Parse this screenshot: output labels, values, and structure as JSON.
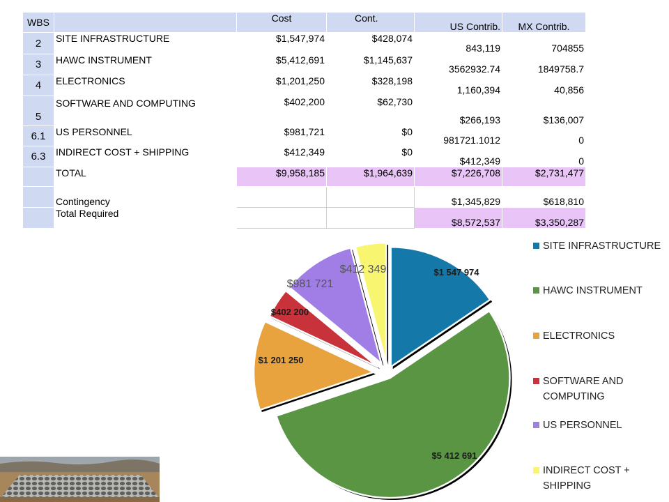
{
  "table": {
    "headers": {
      "wbs": "WBS",
      "desc": "",
      "cost": "Cost",
      "cont": "Cont.",
      "us": "US Contrib.",
      "mx": "MX Contrib."
    },
    "rows": [
      {
        "wbs": "2",
        "desc": "SITE INFRASTRUCTURE",
        "cost": "$1,547,974",
        "cont": "$428,074",
        "us": "843,119",
        "mx": "704855"
      },
      {
        "wbs": "3",
        "desc": "HAWC INSTRUMENT",
        "cost": "$5,412,691",
        "cont": "$1,145,637",
        "us": "3562932.74",
        "mx": "1849758.7"
      },
      {
        "wbs": "4",
        "desc": "ELECTRONICS",
        "cost": "$1,201,250",
        "cont": "$328,198",
        "us": "1,160,394",
        "mx": "40,856"
      },
      {
        "wbs": "5",
        "desc": "SOFTWARE AND COMPUTING",
        "cost": "$402,200",
        "cont": "$62,730",
        "us": "$266,193",
        "mx": "$136,007"
      },
      {
        "wbs": "6.1",
        "desc": "US PERSONNEL",
        "cost": "$981,721",
        "cont": "$0",
        "us": "981721.1012",
        "mx": "0"
      },
      {
        "wbs": "6.3",
        "desc": "INDIRECT COST + SHIPPING",
        "cost": "$412,349",
        "cont": "$0",
        "us": "$412,349",
        "mx": "0"
      }
    ],
    "total": {
      "desc": "TOTAL",
      "cost": "$9,958,185",
      "cont": "$1,964,639",
      "us": "$7,226,708",
      "mx": "$2,731,477"
    },
    "contingency": {
      "desc": "Contingency",
      "us": "$1,345,829",
      "mx": "$618,810"
    },
    "required": {
      "desc": "Total Required",
      "us": "$8,572,537",
      "mx": "$3,350,287"
    }
  },
  "chart_data": {
    "type": "pie",
    "exploded": true,
    "start": "12 o'clock, clockwise",
    "slices": [
      {
        "name": "SITE INFRASTRUCTURE",
        "value": 1547974,
        "label": "$1 547 974",
        "color": "#1478a8"
      },
      {
        "name": "HAWC INSTRUMENT",
        "value": 5412691,
        "label": "$5 412 691",
        "color": "#5a9544"
      },
      {
        "name": "ELECTRONICS",
        "value": 1201250,
        "label": "$1 201 250",
        "color": "#e8a23e"
      },
      {
        "name": "SOFTWARE AND COMPUTING",
        "value": 402200,
        "label": "$402 200",
        "color": "#c8323a"
      },
      {
        "name": "US PERSONNEL",
        "value": 981721,
        "label": "$981 721",
        "color": "#a07ee6"
      },
      {
        "name": "INDIRECT COST + SHIPPING",
        "value": 412349,
        "label": "$412 349",
        "color": "#f8f570"
      }
    ],
    "legend": [
      "SITE INFRASTRUCTURE",
      "HAWC INSTRUMENT",
      "ELECTRONICS",
      "SOFTWARE AND COMPUTING",
      "US PERSONNEL",
      "INDIRECT COST + SHIPPING"
    ],
    "legend_position": "right"
  }
}
